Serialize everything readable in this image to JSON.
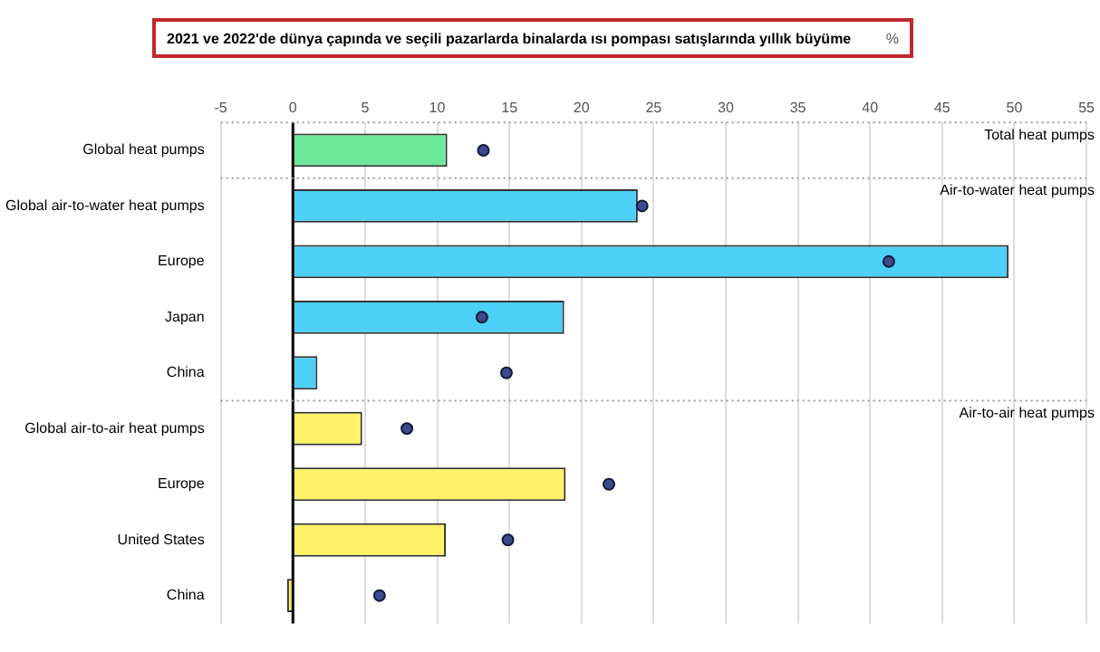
{
  "chart_data": {
    "type": "bar",
    "orientation": "horizontal",
    "title": "2021 ve 2022'de dünya çapında ve seçili pazarlarda binalarda ısı pompası satışlarında yıllık büyüme",
    "subtitle": "%",
    "categories": [
      "Global heat pumps",
      "Global air-to-water heat pumps",
      "Europe",
      "Japan",
      "China",
      "Global air-to-air heat pumps",
      "Europe",
      "United States",
      "China"
    ],
    "series": [
      {
        "colors": [
          "#6ee89a",
          "#4dd0f7",
          "#4dd0f7",
          "#4dd0f7",
          "#4dd0f7",
          "#fff266",
          "#fff266",
          "#fff266",
          "#fff266"
        ],
        "values": [
          10.7,
          23.9,
          49.6,
          18.8,
          1.7,
          4.8,
          18.9,
          10.6,
          -0.4
        ]
      },
      {
        "type": "scatter",
        "color": "#3a4a8c",
        "marker": "circle",
        "values": [
          13.2,
          24.2,
          41.3,
          13.1,
          14.8,
          7.9,
          21.9,
          14.9,
          6.0
        ]
      }
    ],
    "xlim": [
      -5,
      55
    ],
    "xticks": [
      -5,
      0,
      5,
      10,
      15,
      20,
      25,
      30,
      35,
      40,
      45,
      50,
      55
    ],
    "grid": "x",
    "ref_lines": [
      {
        "axis": "x",
        "value": 0,
        "color": "#000000"
      }
    ],
    "annotations": [
      "Total heat pumps",
      "Air-to-water heat pumps",
      "Air-to-air heat pumps"
    ],
    "legend": false
  }
}
